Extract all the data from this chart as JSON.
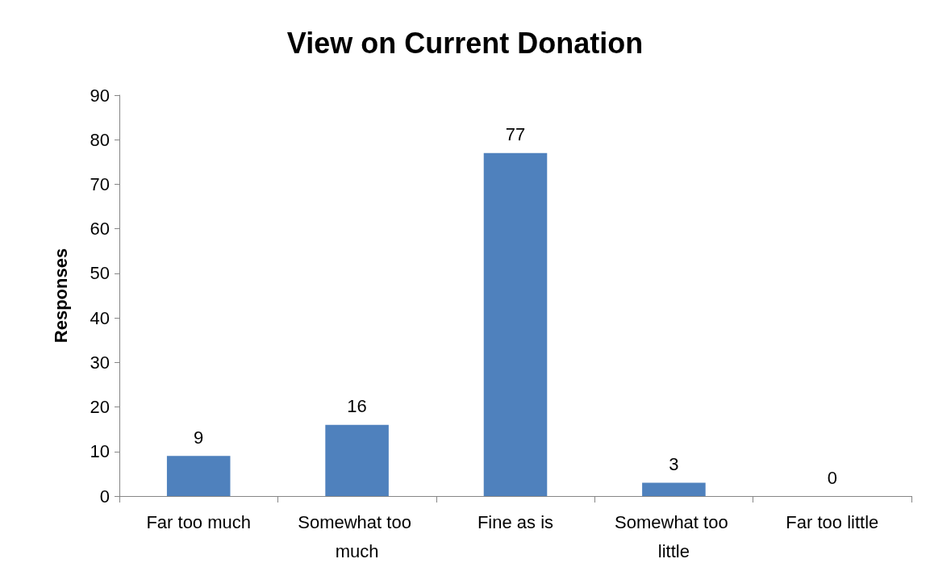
{
  "chart_data": {
    "type": "bar",
    "title": "View on Current Donation",
    "ylabel": "Responses",
    "categories": [
      "Far too much",
      "Somewhat too much",
      "Fine as is",
      "Somewhat too little",
      "Far too little"
    ],
    "values": [
      9,
      16,
      77,
      3,
      0
    ],
    "color": "#4f81bd",
    "ylim": [
      0,
      90
    ],
    "yticks": [
      0,
      10,
      20,
      30,
      40,
      50,
      60,
      70,
      80,
      90
    ],
    "data_labels": true
  }
}
